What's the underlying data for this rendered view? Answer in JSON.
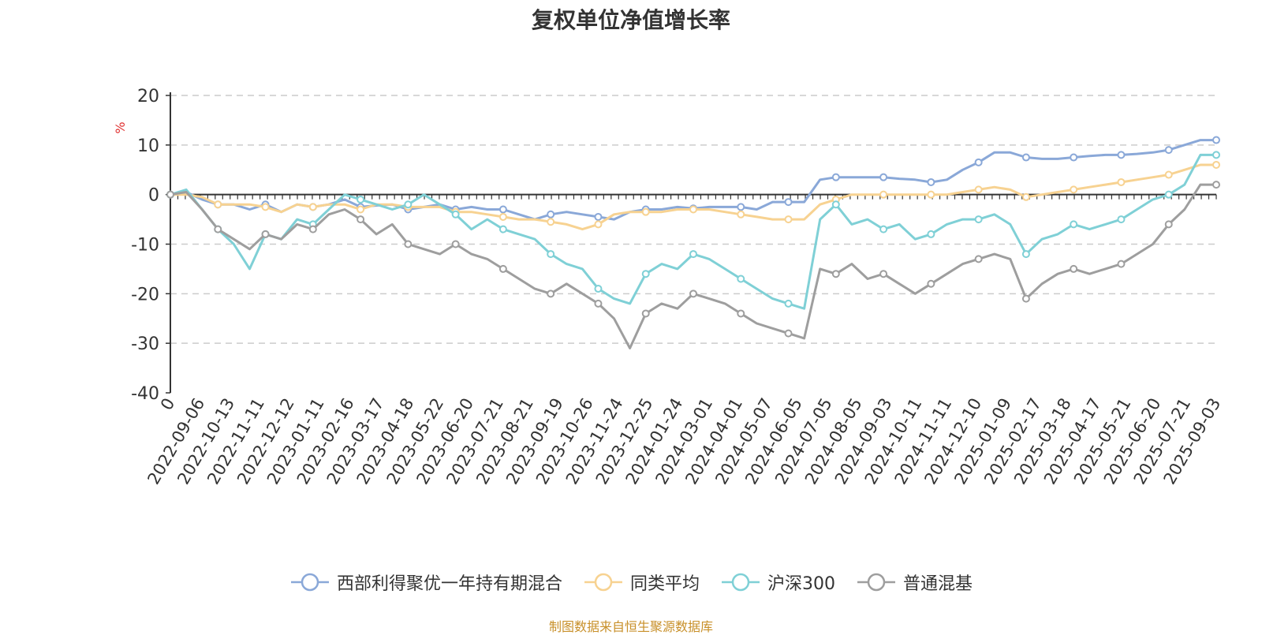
{
  "title": "复权单位净值增长率",
  "source": "制图数据来自恒生聚源数据库",
  "chart_data": {
    "type": "line",
    "title": "复权单位净值增长率",
    "ylabel": "%",
    "ylim": [
      -40,
      20
    ],
    "yticks": [
      20,
      10,
      0,
      -10,
      -20,
      -30,
      -40
    ],
    "grid": true,
    "legend_position": "bottom",
    "x_tick_labels": [
      "0",
      "2022-09-06",
      "2022-10-13",
      "2022-11-11",
      "2022-12-12",
      "2023-01-11",
      "2023-02-16",
      "2023-03-17",
      "2023-04-18",
      "2023-05-22",
      "2023-06-20",
      "2023-07-21",
      "2023-08-21",
      "2023-09-19",
      "2023-10-26",
      "2023-11-24",
      "2023-12-25",
      "2024-01-24",
      "2024-03-01",
      "2024-04-01",
      "2024-05-07",
      "2024-06-05",
      "2024-07-05",
      "2024-08-05",
      "2024-09-03",
      "2024-10-11",
      "2024-11-11",
      "2024-12-10",
      "2025-01-09",
      "2025-02-17",
      "2025-03-18",
      "2025-04-17",
      "2025-05-21",
      "2025-06-20",
      "2025-07-21",
      "2025-09-03"
    ],
    "series": [
      {
        "name": "西部利得聚优一年持有期混合",
        "color": "#8aa8d8",
        "values": [
          0,
          0.5,
          -1,
          -2,
          -2,
          -3,
          -2,
          -3.5,
          -2,
          -2.5,
          -2,
          -1,
          -2.5,
          -2.2,
          -2,
          -3,
          -2.5,
          -2,
          -3,
          -2.5,
          -3,
          -3,
          -4,
          -5,
          -4,
          -3.5,
          -4,
          -4.5,
          -5,
          -3.5,
          -3,
          -3,
          -2.5,
          -2.8,
          -2.5,
          -2.5,
          -2.5,
          -3,
          -1.5,
          -1.5,
          -1.5,
          3,
          3.5,
          3.5,
          3.5,
          3.5,
          3.2,
          3,
          2.5,
          3,
          5,
          6.5,
          8.5,
          8.5,
          7.5,
          7.2,
          7.2,
          7.5,
          7.8,
          8,
          8,
          8.2,
          8.5,
          9,
          10,
          11,
          11
        ]
      },
      {
        "name": "同类平均",
        "color": "#f7d291",
        "values": [
          0,
          0,
          -0.5,
          -2,
          -2,
          -2,
          -2.5,
          -3.5,
          -2,
          -2.5,
          -2,
          -2,
          -3,
          -2,
          -2,
          -2.5,
          -2.5,
          -2.5,
          -3.5,
          -3.5,
          -4,
          -4.5,
          -5,
          -5,
          -5.5,
          -6,
          -7,
          -6,
          -4,
          -3.5,
          -3.5,
          -3.5,
          -3,
          -3,
          -3,
          -3.5,
          -4,
          -4.5,
          -5,
          -5,
          -5,
          -2,
          -1,
          0,
          0,
          0,
          0,
          0,
          0,
          0,
          0.5,
          1,
          1.5,
          1,
          -0.5,
          0,
          0.5,
          1,
          1.5,
          2,
          2.5,
          3,
          3.5,
          4,
          5,
          6,
          6
        ]
      },
      {
        "name": "沪深300",
        "color": "#7fd0d6",
        "values": [
          0,
          1,
          -3,
          -7,
          -10,
          -15,
          -8,
          -9,
          -5,
          -6,
          -3,
          0,
          -1,
          -2,
          -3,
          -2,
          0,
          -2,
          -4,
          -7,
          -5,
          -7,
          -8,
          -9,
          -12,
          -14,
          -15,
          -19,
          -21,
          -22,
          -16,
          -14,
          -15,
          -12,
          -13,
          -15,
          -17,
          -19,
          -21,
          -22,
          -23,
          -5,
          -2,
          -6,
          -5,
          -7,
          -6,
          -9,
          -8,
          -6,
          -5,
          -5,
          -4,
          -6,
          -12,
          -9,
          -8,
          -6,
          -7,
          -6,
          -5,
          -3,
          -1,
          0,
          2,
          8,
          8
        ]
      },
      {
        "name": "普通混基",
        "color": "#9e9e9e",
        "values": [
          0,
          0.5,
          -3,
          -7,
          -9,
          -11,
          -8,
          -9,
          -6,
          -7,
          -4,
          -3,
          -5,
          -8,
          -6,
          -10,
          -11,
          -12,
          -10,
          -12,
          -13,
          -15,
          -17,
          -19,
          -20,
          -18,
          -20,
          -22,
          -25,
          -31,
          -24,
          -22,
          -23,
          -20,
          -21,
          -22,
          -24,
          -26,
          -27,
          -28,
          -29,
          -15,
          -16,
          -14,
          -17,
          -16,
          -18,
          -20,
          -18,
          -16,
          -14,
          -13,
          -12,
          -13,
          -21,
          -18,
          -16,
          -15,
          -16,
          -15,
          -14,
          -12,
          -10,
          -6,
          -3,
          2,
          2
        ]
      }
    ]
  }
}
